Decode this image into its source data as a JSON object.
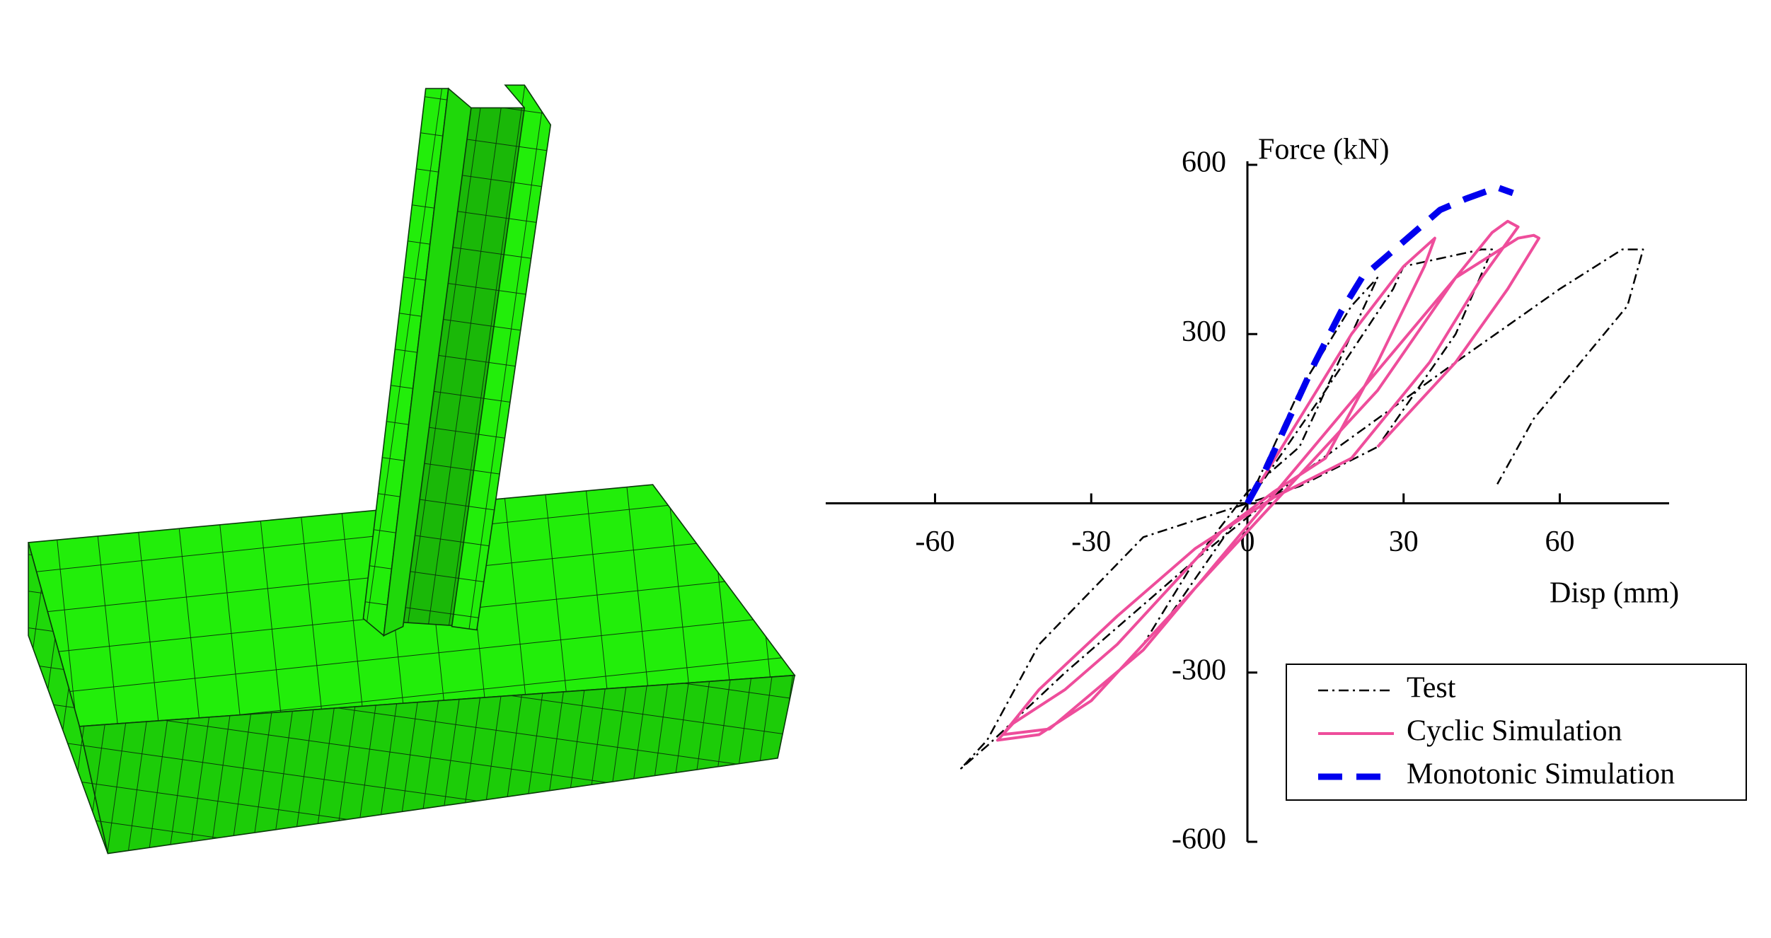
{
  "chart_data": {
    "type": "line",
    "ylabel": "Force (kN)",
    "xlabel": "Disp (mm)",
    "xlim": [
      -81,
      81
    ],
    "xticks": [
      -60,
      -30,
      0,
      30,
      60
    ],
    "ylim": [
      -600,
      600
    ],
    "yticks": [
      -600,
      -300,
      300,
      600
    ],
    "series": [
      {
        "name": "Test",
        "color": "#000000",
        "linestyle": "dashdot",
        "x": [
          0,
          10,
          20,
          25,
          20,
          10,
          0,
          -10,
          -20,
          -25,
          -15,
          0,
          15,
          28,
          30,
          45,
          47,
          40,
          25,
          10,
          -20,
          -40,
          -50,
          -55,
          -50,
          -35,
          -10,
          10,
          40,
          60,
          72,
          76,
          73,
          55,
          48
        ],
        "values": [
          0,
          200,
          350,
          400,
          300,
          100,
          20,
          -100,
          -250,
          -300,
          -200,
          0,
          200,
          380,
          420,
          450,
          450,
          300,
          100,
          30,
          -60,
          -250,
          -420,
          -470,
          -430,
          -300,
          -100,
          50,
          250,
          380,
          450,
          450,
          350,
          150,
          34
        ]
      },
      {
        "name": "Cyclic Simulation",
        "color": "#ee4d9b",
        "linestyle": "solid",
        "x": [
          0,
          10,
          20,
          30,
          36,
          34,
          25,
          15,
          5,
          -5,
          -15,
          -25,
          -35,
          -45,
          -48,
          -40,
          -30,
          -15,
          0,
          10,
          25,
          40,
          47,
          50,
          52,
          45,
          35,
          20,
          5,
          -10,
          -25,
          -40,
          -47,
          -38,
          -20,
          0,
          20,
          40,
          52,
          55,
          56,
          50,
          40,
          25
        ],
        "values": [
          0,
          150,
          300,
          420,
          470,
          420,
          250,
          80,
          20,
          -50,
          -150,
          -250,
          -330,
          -390,
          -420,
          -410,
          -350,
          -200,
          -50,
          50,
          200,
          400,
          480,
          500,
          490,
          400,
          250,
          80,
          10,
          -80,
          -200,
          -330,
          -410,
          -400,
          -260,
          -40,
          180,
          400,
          470,
          475,
          470,
          380,
          250,
          100
        ]
      },
      {
        "name": "Monotonic Simulation",
        "color": "#0000ee",
        "linestyle": "dashed",
        "x": [
          0,
          3,
          8,
          13,
          18,
          22,
          27,
          32,
          37,
          42,
          48,
          51
        ],
        "values": [
          0,
          50,
          150,
          250,
          340,
          400,
          440,
          480,
          520,
          540,
          560,
          550
        ]
      }
    ]
  }
}
